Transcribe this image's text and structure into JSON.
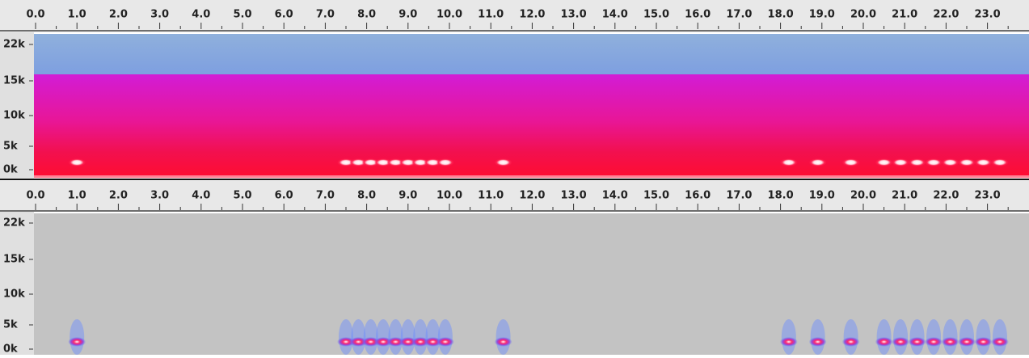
{
  "panels": [
    {
      "ruler": [
        "0.0",
        "1.0",
        "2.0",
        "3.0",
        "4.0",
        "5.0",
        "6.0",
        "7.0",
        "8.0",
        "9.0",
        "10.0",
        "11.0",
        "12.0",
        "13.0",
        "14.0",
        "15.0",
        "16.0",
        "17.0",
        "18.0",
        "19.0",
        "20.0",
        "21.0",
        "22.0",
        "23.0"
      ],
      "freq_labels": [
        "22k",
        "15k",
        "10k",
        "5k",
        "0k"
      ]
    },
    {
      "ruler": [
        "0.0",
        "1.0",
        "2.0",
        "3.0",
        "4.0",
        "5.0",
        "6.0",
        "7.0",
        "8.0",
        "9.0",
        "10.0",
        "11.0",
        "12.0",
        "13.0",
        "14.0",
        "15.0",
        "16.0",
        "17.0",
        "18.0",
        "19.0",
        "20.0",
        "21.0",
        "22.0",
        "23.0"
      ],
      "freq_labels": [
        "22k",
        "15k",
        "10k",
        "5k",
        "0k"
      ]
    }
  ]
}
